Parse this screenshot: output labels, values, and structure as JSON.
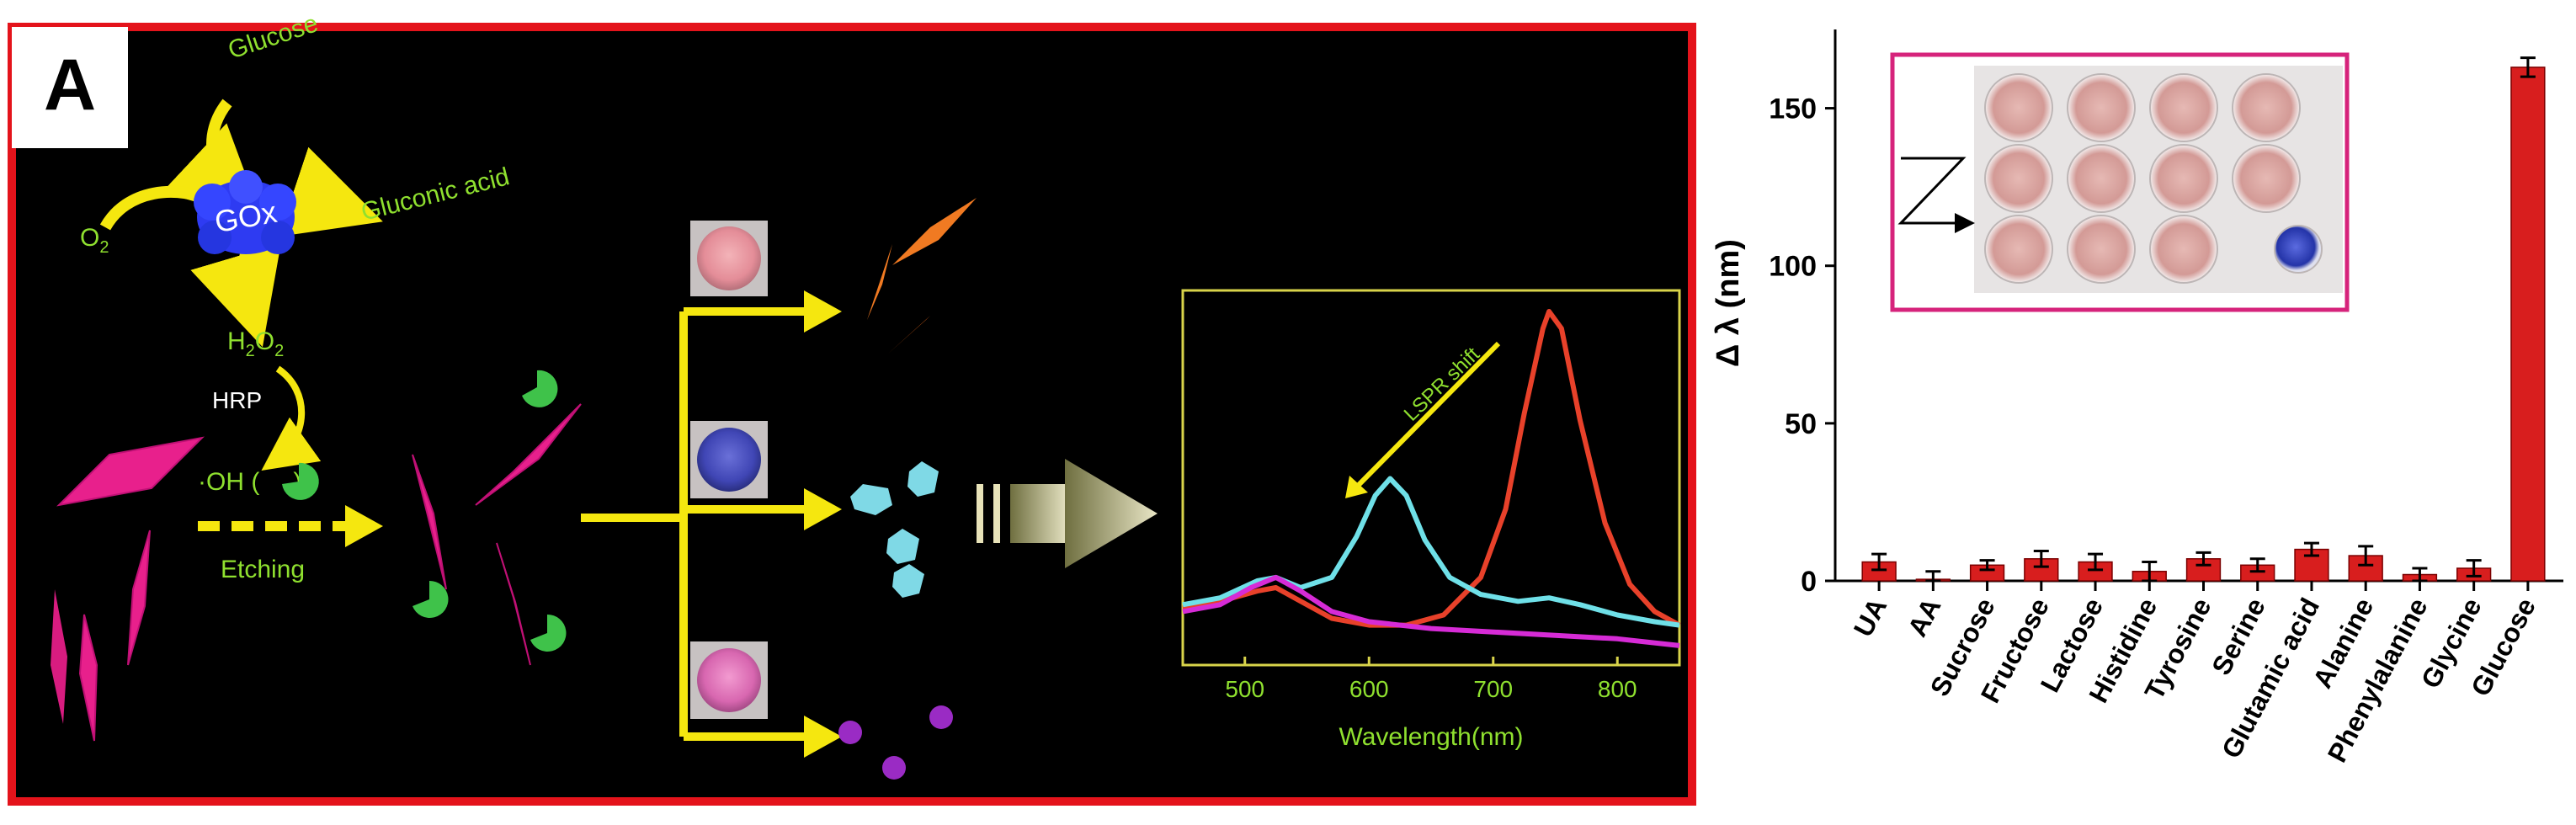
{
  "panel_a": {
    "panel_letter": "A",
    "labels": {
      "glucose": "Glucose",
      "gox": "GOx",
      "gluconic_acid": "Gluconic acid",
      "o2_main": "O",
      "o2_sub": "2",
      "h2o2_h": "H",
      "h2o2_sub1": "2",
      "h2o2_o": "O",
      "h2o2_sub2": "2",
      "hrp": "HRP",
      "oh": "·OH (",
      "oh_close": ")",
      "etching": "Etching",
      "lspr_shift": "LSPR shift"
    },
    "colors": {
      "background": "#000000",
      "border": "#e4131b",
      "label_green": "#8fe02f",
      "arrow_yellow": "#f5e70f",
      "gox_blue": "#2e3bf2",
      "bipyramid_magenta": "#e8208c",
      "orange_particle": "#f07a22",
      "cyan_particle": "#7fd9e6",
      "purple_sphere": "#9a2bc4",
      "curve_red": "#e8412a",
      "curve_cyan": "#6fe0e8",
      "curve_magenta": "#d62bd6",
      "inner_plot_frame": "#d8d34a"
    },
    "inner_chart": {
      "type": "line",
      "xlabel": "Wavelength(nm)",
      "ylabel": "",
      "title": "",
      "x_ticks": [
        500,
        600,
        700,
        800
      ],
      "xlim": [
        450,
        850
      ],
      "ylim": [
        0,
        1
      ],
      "series": [
        {
          "color": "#e8412a",
          "peak_nm": 745,
          "points": [
            [
              450,
              0.13
            ],
            [
              480,
              0.15
            ],
            [
              510,
              0.18
            ],
            [
              525,
              0.19
            ],
            [
              540,
              0.16
            ],
            [
              570,
              0.1
            ],
            [
              600,
              0.08
            ],
            [
              630,
              0.08
            ],
            [
              660,
              0.11
            ],
            [
              690,
              0.22
            ],
            [
              710,
              0.42
            ],
            [
              725,
              0.7
            ],
            [
              740,
              0.95
            ],
            [
              745,
              1.0
            ],
            [
              755,
              0.95
            ],
            [
              770,
              0.68
            ],
            [
              790,
              0.38
            ],
            [
              810,
              0.2
            ],
            [
              830,
              0.12
            ],
            [
              850,
              0.08
            ]
          ]
        },
        {
          "color": "#6fe0e8",
          "peak_nm": 617,
          "points": [
            [
              450,
              0.14
            ],
            [
              480,
              0.16
            ],
            [
              510,
              0.21
            ],
            [
              525,
              0.22
            ],
            [
              545,
              0.19
            ],
            [
              570,
              0.22
            ],
            [
              590,
              0.34
            ],
            [
              605,
              0.46
            ],
            [
              617,
              0.51
            ],
            [
              630,
              0.46
            ],
            [
              645,
              0.33
            ],
            [
              665,
              0.22
            ],
            [
              690,
              0.17
            ],
            [
              720,
              0.15
            ],
            [
              745,
              0.16
            ],
            [
              770,
              0.14
            ],
            [
              800,
              0.11
            ],
            [
              830,
              0.09
            ],
            [
              850,
              0.08
            ]
          ]
        },
        {
          "color": "#d62bd6",
          "peak_nm": 525,
          "points": [
            [
              450,
              0.12
            ],
            [
              480,
              0.14
            ],
            [
              505,
              0.19
            ],
            [
              525,
              0.22
            ],
            [
              545,
              0.18
            ],
            [
              570,
              0.12
            ],
            [
              600,
              0.09
            ],
            [
              650,
              0.07
            ],
            [
              700,
              0.06
            ],
            [
              750,
              0.05
            ],
            [
              800,
              0.04
            ],
            [
              850,
              0.02
            ]
          ]
        }
      ]
    }
  },
  "chart_data": {
    "type": "bar",
    "title": "",
    "xlabel": "",
    "ylabel": "Δ λ (nm)",
    "ylim": [
      0,
      175
    ],
    "y_ticks": [
      0,
      50,
      100,
      150
    ],
    "bar_color": "#d81e1e",
    "categories": [
      "UA",
      "AA",
      "Sucrose",
      "Fructose",
      "Lactose",
      "Histidine",
      "Tyrosine",
      "Serine",
      "Glutamic acid",
      "Alanine",
      "Phenylalanine",
      "Glycine",
      "Glucose"
    ],
    "values": [
      6,
      0.5,
      5,
      7,
      6,
      3,
      7,
      5,
      10,
      8,
      2,
      4,
      163
    ],
    "errors": [
      2.5,
      2.5,
      1.5,
      2.5,
      2.5,
      3,
      2,
      2,
      2,
      3,
      2,
      2.5,
      3
    ],
    "legend": "none",
    "grid": false
  },
  "inset": {
    "frame_color": "#d6237b",
    "well_color": "#d9a3a0",
    "blue_well_color": "#2b3fb8"
  }
}
